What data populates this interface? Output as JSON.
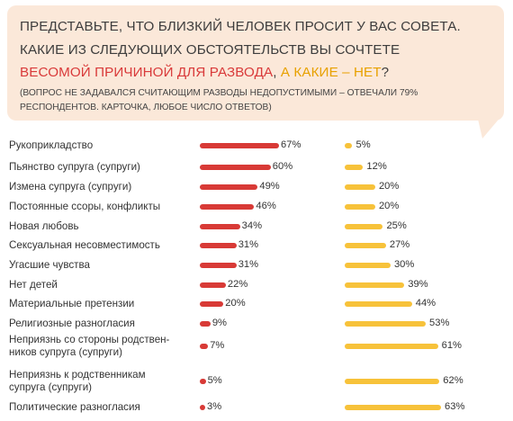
{
  "question": {
    "line1": "ПРЕДСТАВЬТЕ, ЧТО БЛИЗКИЙ ЧЕЛОВЕК ПРОСИТ У ВАС СОВЕТА.",
    "line2": "КАКИЕ ИЗ СЛЕДУЮЩИХ ОБСТОЯТЕЛЬСТВ ВЫ СОЧТЕТЕ",
    "line3_red": "ВЕСОМОЙ ПРИЧИНОЙ ДЛЯ РАЗВОДА",
    "line3_sep": ", ",
    "line3_orange": "А КАКИЕ – НЕТ",
    "line3_end": "?",
    "note_line1": "(ВОПРОС НЕ ЗАДАВАЛСЯ СЧИТАЮЩИМ РАЗВОДЫ НЕДОПУСТИМЫМИ – ОТВЕЧАЛИ 79%",
    "note_line2": "РЕСПОНДЕНТОВ. КАРТОЧКА, ЛЮБОЕ ЧИСЛО ОТВЕТОВ)"
  },
  "colors": {
    "weighty": "#d83a36",
    "not_weighty": "#f7c23a",
    "bubble": "#fbe8d9"
  },
  "chart_data": {
    "type": "bar",
    "orientation": "horizontal",
    "categories": [
      "Рукоприкладство",
      "Пьянство супруга (супруги)",
      "Измена супруга (супруги)",
      "Постоянные ссоры, конфликты",
      "Новая любовь",
      "Сексуальная несовместимость",
      "Угасшие чувства",
      "Нет детей",
      "Материальные претензии",
      "Религиозные разногласия",
      "Неприязнь со стороны родствен-\nников супруга (супруги)",
      "Неприязнь к родственникам\nсупруга (супруги)",
      "Политические разногласия"
    ],
    "series": [
      {
        "values": [
          67,
          60,
          49,
          46,
          34,
          31,
          31,
          22,
          20,
          9,
          7,
          5,
          3
        ]
      },
      {
        "values": [
          5,
          12,
          20,
          20,
          25,
          27,
          30,
          39,
          44,
          53,
          61,
          62,
          63
        ]
      }
    ],
    "unit": "%",
    "xlim": [
      0,
      100
    ]
  }
}
